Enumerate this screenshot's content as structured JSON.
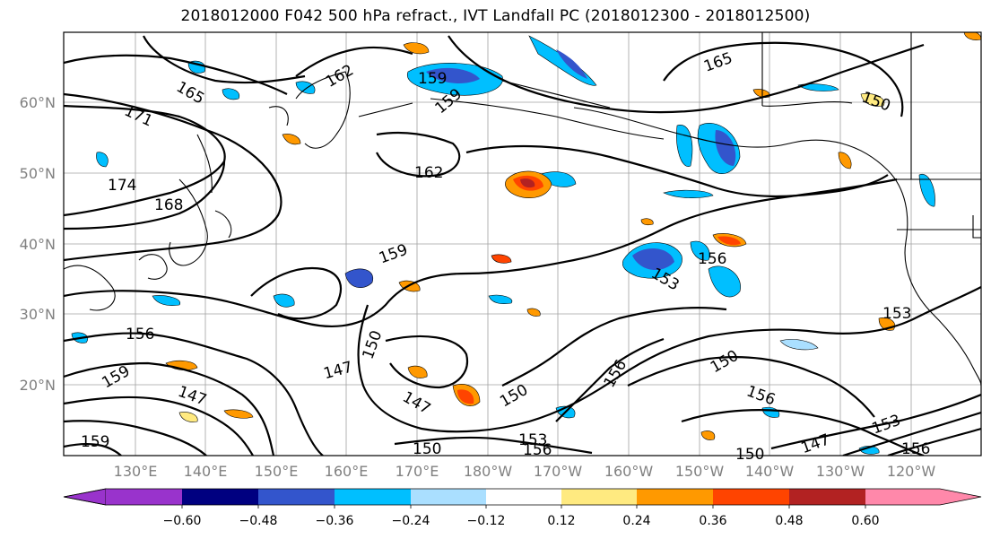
{
  "title": "2018012000 F042 500 hPa refract., IVT Landfall PC (2018012300 - 2018012500)",
  "lat_labels": [
    "60°N",
    "50°N",
    "40°N",
    "30°N",
    "20°N"
  ],
  "lon_labels": [
    "130°E",
    "140°E",
    "150°E",
    "160°E",
    "170°E",
    "180°W",
    "170°W",
    "160°W",
    "150°W",
    "140°W",
    "130°W",
    "120°W"
  ],
  "contour_labels": [
    "165",
    "162",
    "159",
    "159",
    "165",
    "171",
    "174",
    "168",
    "162",
    "159",
    "156",
    "153",
    "156",
    "153",
    "150",
    "147",
    "150",
    "159",
    "156",
    "147",
    "147",
    "150",
    "156",
    "153",
    "156",
    "150",
    "147",
    "150",
    "153",
    "156",
    "159",
    "150"
  ],
  "colorbar": {
    "ticks": [
      "−0.60",
      "−0.48",
      "−0.36",
      "−0.24",
      "−0.12",
      "0.12",
      "0.24",
      "0.36",
      "0.48",
      "0.60"
    ],
    "colors": [
      "#9933cc",
      "#000080",
      "#3355cc",
      "#00bfff",
      "#aadfff",
      "#ffffff",
      "#ffea80",
      "#ff9900",
      "#ff4400",
      "#b22222",
      "#ff88aa"
    ]
  }
}
